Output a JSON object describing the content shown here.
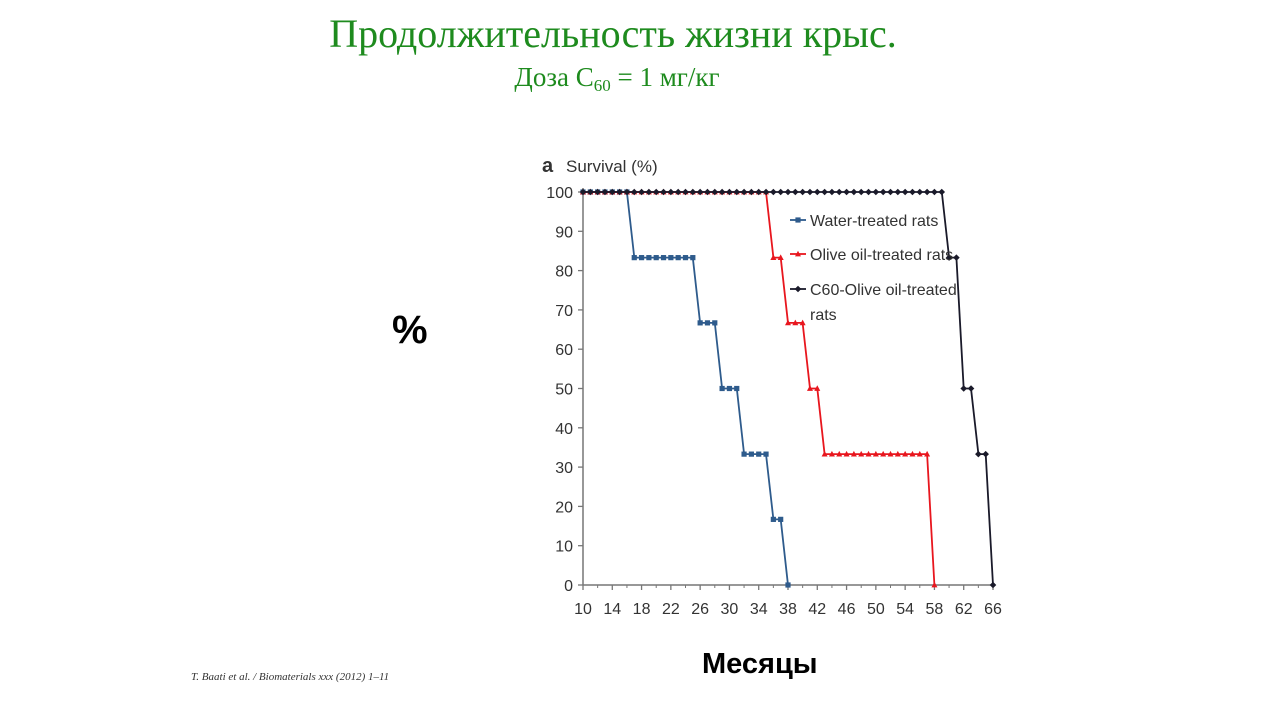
{
  "slide": {
    "title": "Продолжительность жизни крыс.",
    "subtitle_prefix": "Доза C",
    "subtitle_sub": "60",
    "subtitle_suffix": " = 1 мг/кг",
    "y_unit_label": "%",
    "x_unit_label": "Месяцы",
    "citation": "T. Baati et al. / Biomaterials xxx (2012) 1–11"
  },
  "colors": {
    "title": "#1e8b1e",
    "water": "#2e5b8c",
    "olive": "#e8161e",
    "c60": "#1a1a2a"
  },
  "chart_data": {
    "type": "line",
    "panel_label": "a",
    "ylabel": "Survival (%)",
    "xlabel": "",
    "xlim": [
      10,
      66
    ],
    "ylim": [
      0,
      100
    ],
    "x_ticks": [
      10,
      14,
      18,
      22,
      26,
      30,
      34,
      38,
      42,
      46,
      50,
      54,
      58,
      62,
      66
    ],
    "y_ticks": [
      0,
      10,
      20,
      30,
      40,
      50,
      60,
      70,
      80,
      90,
      100
    ],
    "grid": false,
    "legend_position": "top-right",
    "series": [
      {
        "name": "Water-treated rats",
        "marker": "square",
        "color": "#2e5b8c",
        "x": [
          10,
          11,
          12,
          13,
          14,
          15,
          16,
          17,
          18,
          19,
          20,
          21,
          22,
          23,
          24,
          25,
          26,
          27,
          28,
          29,
          30,
          31,
          32,
          33,
          34,
          35,
          36,
          37,
          38
        ],
        "y": [
          100,
          100,
          100,
          100,
          100,
          100,
          100,
          83.3,
          83.3,
          83.3,
          83.3,
          83.3,
          83.3,
          83.3,
          83.3,
          83.3,
          66.7,
          66.7,
          66.7,
          50,
          50,
          50,
          33.3,
          33.3,
          33.3,
          33.3,
          16.7,
          16.7,
          0
        ]
      },
      {
        "name": "Olive oil-treated rats",
        "marker": "triangle",
        "color": "#e8161e",
        "x": [
          10,
          11,
          12,
          13,
          14,
          15,
          16,
          17,
          18,
          19,
          20,
          21,
          22,
          23,
          24,
          25,
          26,
          27,
          28,
          29,
          30,
          31,
          32,
          33,
          34,
          35,
          36,
          37,
          38,
          39,
          40,
          41,
          42,
          43,
          44,
          45,
          46,
          47,
          48,
          49,
          50,
          51,
          52,
          53,
          54,
          55,
          56,
          57,
          58
        ],
        "y": [
          100,
          100,
          100,
          100,
          100,
          100,
          100,
          100,
          100,
          100,
          100,
          100,
          100,
          100,
          100,
          100,
          100,
          100,
          100,
          100,
          100,
          100,
          100,
          100,
          100,
          100,
          83.3,
          83.3,
          66.7,
          66.7,
          66.7,
          50,
          50,
          33.3,
          33.3,
          33.3,
          33.3,
          33.3,
          33.3,
          33.3,
          33.3,
          33.3,
          33.3,
          33.3,
          33.3,
          33.3,
          33.3,
          33.3,
          0
        ]
      },
      {
        "name": "C60-Olive oil-treated rats",
        "marker": "diamond",
        "color": "#1a1a2a",
        "x": [
          10,
          11,
          12,
          13,
          14,
          15,
          16,
          17,
          18,
          19,
          20,
          21,
          22,
          23,
          24,
          25,
          26,
          27,
          28,
          29,
          30,
          31,
          32,
          33,
          34,
          35,
          36,
          37,
          38,
          39,
          40,
          41,
          42,
          43,
          44,
          45,
          46,
          47,
          48,
          49,
          50,
          51,
          52,
          53,
          54,
          55,
          56,
          57,
          58,
          59,
          60,
          61,
          62,
          63,
          64,
          65,
          66
        ],
        "y": [
          100,
          100,
          100,
          100,
          100,
          100,
          100,
          100,
          100,
          100,
          100,
          100,
          100,
          100,
          100,
          100,
          100,
          100,
          100,
          100,
          100,
          100,
          100,
          100,
          100,
          100,
          100,
          100,
          100,
          100,
          100,
          100,
          100,
          100,
          100,
          100,
          100,
          100,
          100,
          100,
          100,
          100,
          100,
          100,
          100,
          100,
          100,
          100,
          100,
          100,
          83.3,
          83.3,
          50,
          50,
          33.3,
          33.3,
          0
        ]
      }
    ]
  }
}
